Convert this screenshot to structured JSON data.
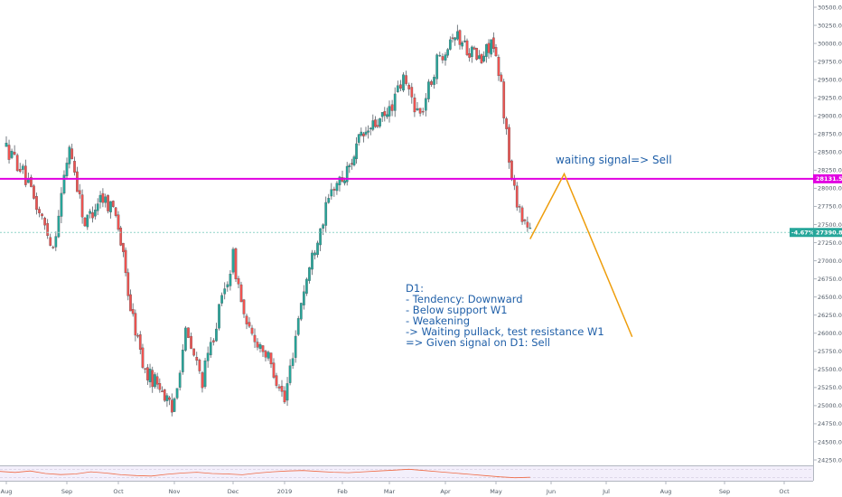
{
  "chart_data": {
    "type": "candlestick",
    "title": "",
    "xlabel": "",
    "ylabel": "",
    "ylim": [
      24100,
      30560
    ],
    "y_ticks": [
      "30500.0",
      "30250.0",
      "30000.0",
      "29750.0",
      "29500.0",
      "29250.0",
      "29000.0",
      "28750.0",
      "28500.0",
      "28250.0",
      "28000.0",
      "27750.0",
      "27500.0",
      "27250.0",
      "27000.0",
      "26750.0",
      "26500.0",
      "26250.0",
      "26000.0",
      "25750.0",
      "25500.0",
      "25250.0",
      "25000.0",
      "24750.0",
      "24500.0",
      "24250.0"
    ],
    "x_ticks": [
      "Aug",
      "Sep",
      "Oct",
      "Nov",
      "Dec",
      "2019",
      "Feb",
      "Mar",
      "Apr",
      "May",
      "Jun",
      "Jul",
      "Aug",
      "Sep",
      "Oct"
    ],
    "anchors": [
      {
        "label": "Aug",
        "candle_index": 0
      },
      {
        "label": "Sep",
        "candle_index": 22
      },
      {
        "label": "Oct",
        "candle_index": 42
      },
      {
        "label": "Nov",
        "candle_index": 65
      },
      {
        "label": "Dec",
        "candle_index": 86
      },
      {
        "label": "2019",
        "candle_index": 105
      },
      {
        "label": "Feb",
        "candle_index": 126
      },
      {
        "label": "Mar",
        "candle_index": 146
      },
      {
        "label": "Apr",
        "candle_index": 166
      },
      {
        "label": "May",
        "candle_index": 187
      },
      {
        "label": "Jun",
        "candle_index": 208
      },
      {
        "label": "Jul",
        "candle_index": 229
      },
      {
        "label": "Aug",
        "candle_index": 252
      },
      {
        "label": "Sep",
        "candle_index": 274
      },
      {
        "label": "Oct",
        "candle_index": 295
      }
    ],
    "path_points": [
      [
        0,
        28600
      ],
      [
        6,
        28300
      ],
      [
        12,
        27750
      ],
      [
        18,
        27200
      ],
      [
        24,
        28600
      ],
      [
        30,
        27500
      ],
      [
        36,
        27900
      ],
      [
        42,
        27700
      ],
      [
        48,
        26350
      ],
      [
        54,
        25450
      ],
      [
        60,
        25300
      ],
      [
        65,
        24900
      ],
      [
        70,
        26000
      ],
      [
        76,
        25350
      ],
      [
        82,
        26300
      ],
      [
        87,
        27050
      ],
      [
        92,
        26050
      ],
      [
        98,
        25800
      ],
      [
        104,
        25300
      ],
      [
        106,
        25050
      ],
      [
        112,
        26450
      ],
      [
        118,
        27350
      ],
      [
        124,
        28050
      ],
      [
        128,
        28150
      ],
      [
        134,
        28650
      ],
      [
        140,
        28850
      ],
      [
        146,
        29000
      ],
      [
        152,
        29500
      ],
      [
        158,
        29000
      ],
      [
        164,
        29750
      ],
      [
        170,
        30150
      ],
      [
        176,
        29950
      ],
      [
        182,
        29750
      ],
      [
        186,
        30050
      ],
      [
        190,
        29400
      ],
      [
        194,
        28100
      ],
      [
        198,
        27600
      ],
      [
        201,
        27400
      ]
    ],
    "candle_count": 201,
    "last_candle_index": 200,
    "rsi_points": [
      60,
      55,
      62,
      50,
      45,
      48,
      58,
      52,
      44,
      40,
      38,
      46,
      52,
      56,
      50,
      48,
      44,
      52,
      58,
      62,
      64,
      60,
      56,
      54,
      58,
      62,
      66,
      70,
      64,
      58,
      52,
      46,
      40,
      34,
      30,
      32
    ]
  },
  "levels": {
    "resistance": {
      "price": 28131.5,
      "label": "28131.5",
      "color": "#e100e1"
    },
    "current": {
      "price": 27390.8,
      "label": "27390.8",
      "change": "-4.67%",
      "color": "#26a69a"
    }
  },
  "forecast": {
    "color": "#ee9d0b",
    "points": [
      [
        200,
        27300
      ],
      [
        213,
        28200
      ],
      [
        239,
        25950
      ]
    ]
  },
  "colors": {
    "up": "#26a69a",
    "down": "#ef5350"
  },
  "annotations": {
    "signal": "waiting signal=> Sell",
    "note": [
      "D1:",
      "- Tendency: Downward",
      "- Below support W1",
      "- Weakening",
      "-> Waiting pullack, test resistance W1",
      "=> Given signal on D1: Sell"
    ]
  }
}
